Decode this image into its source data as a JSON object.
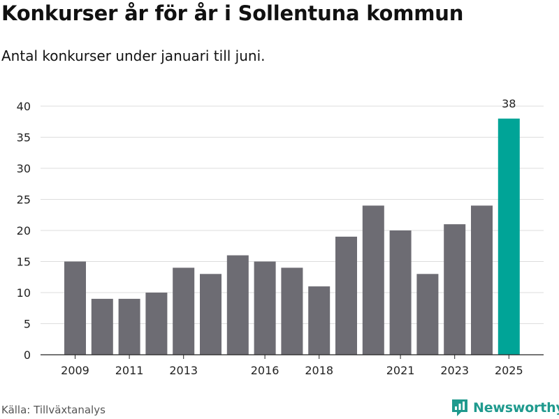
{
  "header": {
    "title": "Konkurser år för år i Sollentuna kommun",
    "subtitle": "Antal konkurser under januari till juni."
  },
  "footer": {
    "source": "Källa: Tillväxtanalys",
    "brand": "Newsworthy",
    "brand_icon": "newsworthy-logo-icon"
  },
  "colors": {
    "bar": "#6d6c73",
    "highlight": "#00a497",
    "grid": "#dddddd",
    "brand": "#1f9a8e"
  },
  "chart_data": {
    "type": "bar",
    "categories": [
      "2009",
      "2010",
      "2011",
      "2012",
      "2013",
      "2014",
      "2015",
      "2016",
      "2017",
      "2018",
      "2019",
      "2020",
      "2021",
      "2022",
      "2023",
      "2024",
      "2025"
    ],
    "values": [
      15,
      9,
      9,
      10,
      14,
      13,
      16,
      15,
      14,
      11,
      19,
      24,
      20,
      13,
      21,
      24,
      38
    ],
    "x_tick_labels": [
      "2009",
      "2011",
      "2013",
      "2016",
      "2018",
      "2021",
      "2023",
      "2025"
    ],
    "y_ticks": [
      0,
      5,
      10,
      15,
      20,
      25,
      30,
      35,
      40
    ],
    "ylim": [
      0,
      40
    ],
    "highlight_category": "2025",
    "data_labels": [
      {
        "category": "2025",
        "text": "38"
      }
    ],
    "grid": true,
    "xlabel": "",
    "ylabel": ""
  }
}
